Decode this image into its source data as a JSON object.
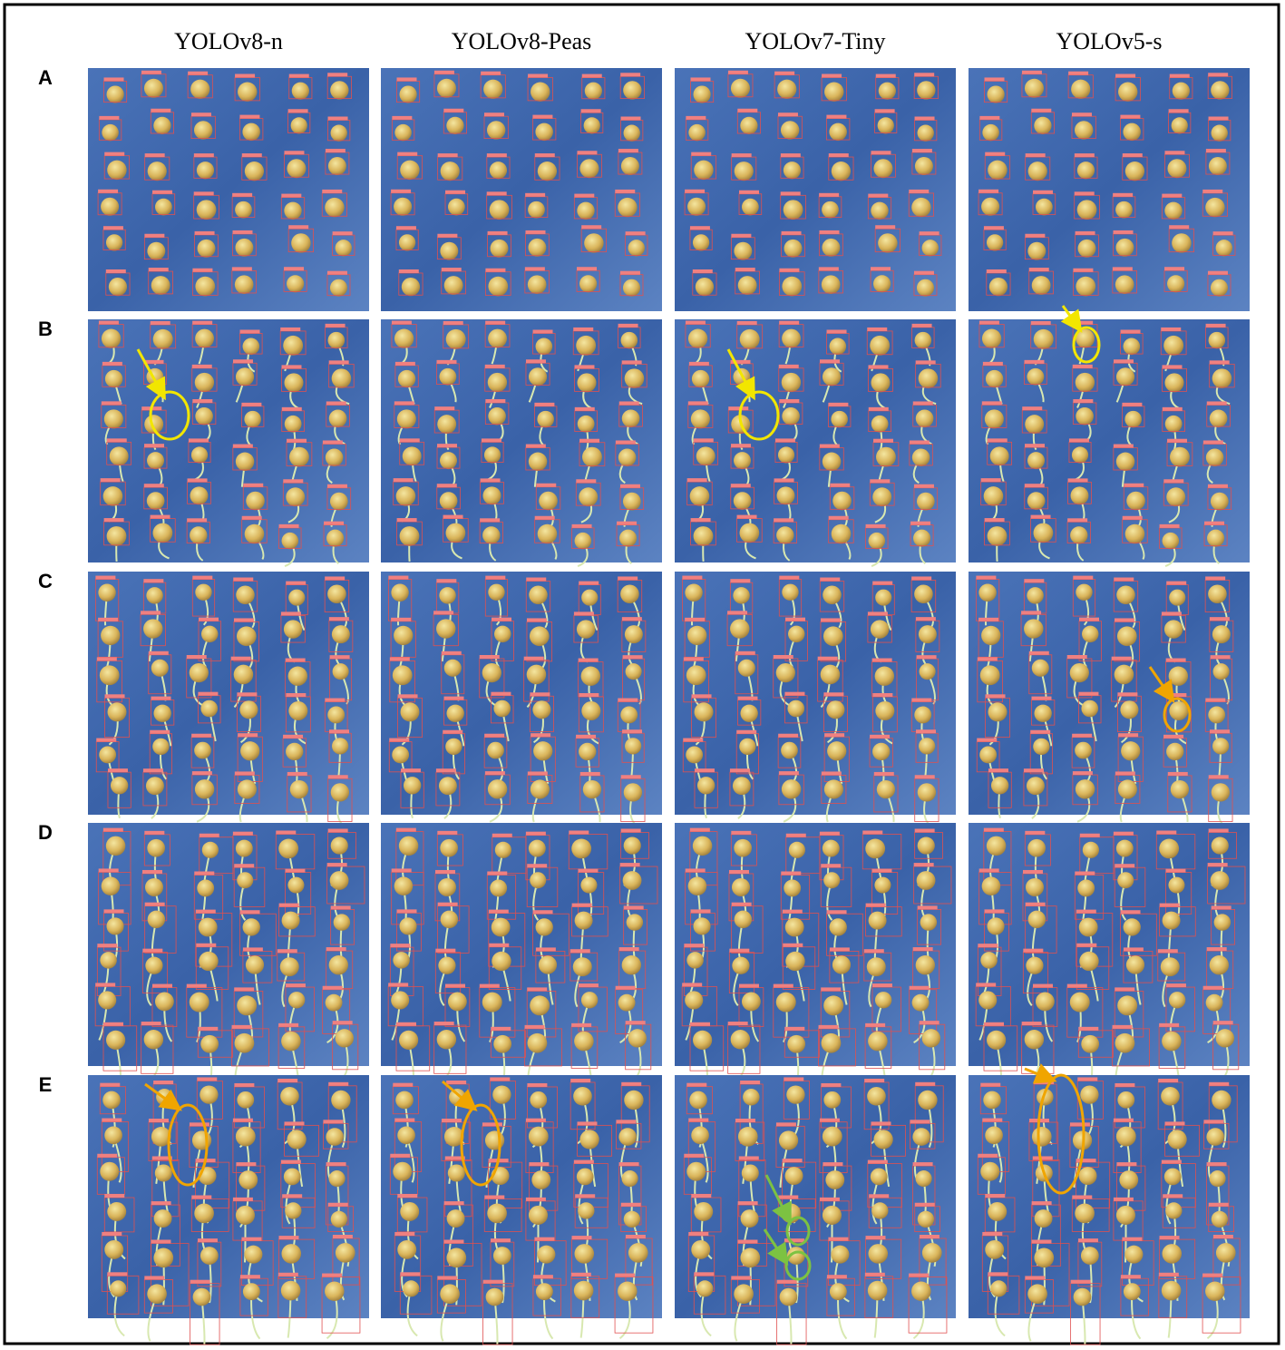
{
  "columns": [
    "YOLOv8-n",
    "YOLOv8-Peas",
    "YOLOv7-Tiny",
    "YOLOv5-s"
  ],
  "rows": [
    "A",
    "B",
    "C",
    "D",
    "E"
  ]
}
